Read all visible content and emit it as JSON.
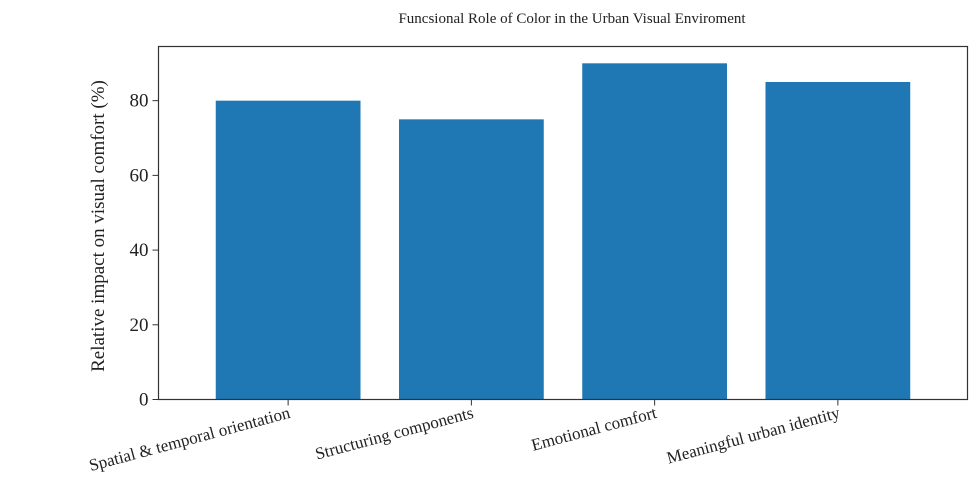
{
  "chart_data": {
    "type": "bar",
    "title": "Funcsional Role of Color in the Urban Visual Enviroment",
    "xlabel": "",
    "ylabel": "Relative impact on visual comfort (%)",
    "categories": [
      "Spatial & temporal orientation",
      "Structuring components",
      "Emotional comfort",
      "Meaningful urban identity"
    ],
    "values": [
      80,
      75,
      90,
      85
    ],
    "ylim": [
      0,
      94.5
    ],
    "yticks": [
      0,
      20,
      40,
      60,
      80
    ],
    "bar_color": "#1f77b4",
    "grid": false,
    "legend": "none"
  }
}
